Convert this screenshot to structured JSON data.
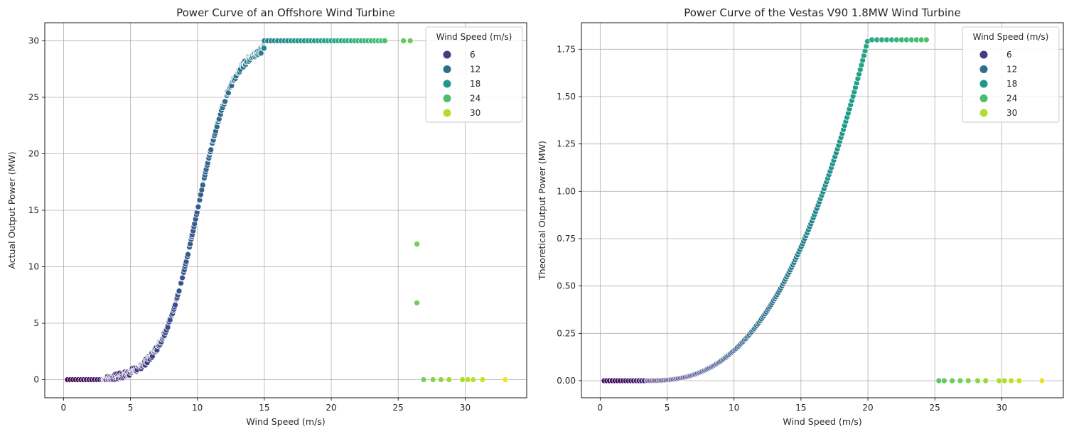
{
  "chart_data": [
    {
      "type": "scatter",
      "title": "Power Curve of an Offshore Wind Turbine",
      "xlabel": "Wind Speed (m/s)",
      "ylabel": "Actual Output Power (MW)",
      "xlim": [
        -1.4,
        34.6
      ],
      "ylim": [
        -1.6,
        31.6
      ],
      "xticks": [
        0,
        5,
        10,
        15,
        20,
        25,
        30
      ],
      "xtick_labels": [
        "0",
        "5",
        "10",
        "15",
        "20",
        "25",
        "30"
      ],
      "yticks": [
        0,
        5,
        10,
        15,
        20,
        25,
        30
      ],
      "ytick_labels": [
        "0",
        "5",
        "10",
        "15",
        "20",
        "25",
        "30"
      ],
      "grid": true,
      "legend": {
        "title": "Wind Speed (m/s)",
        "placement": "top-right",
        "entries": [
          {
            "label": "6",
            "value": 6
          },
          {
            "label": "12",
            "value": 12
          },
          {
            "label": "18",
            "value": 18
          },
          {
            "label": "24",
            "value": 24
          },
          {
            "label": "30",
            "value": 30
          }
        ]
      },
      "hue": "Wind Speed (m/s)",
      "curve": {
        "type": "logistic",
        "cut_in": 3.0,
        "rated_power": 30,
        "midpoint": 10.0,
        "steepness": 0.75,
        "x_range": [
          3.0,
          24.2
        ],
        "spread": 0.6
      },
      "low_points_x": [
        0.3,
        0.5,
        0.7,
        0.9,
        1.1,
        1.3,
        1.5,
        1.7,
        1.9,
        2.1,
        2.3,
        2.5,
        2.7,
        2.9
      ],
      "points": [
        {
          "x": 25.4,
          "y": 30.0
        },
        {
          "x": 25.9,
          "y": 30.0
        },
        {
          "x": 26.4,
          "y": 12.0
        },
        {
          "x": 26.4,
          "y": 6.8
        },
        {
          "x": 26.9,
          "y": 0
        },
        {
          "x": 27.6,
          "y": 0
        },
        {
          "x": 28.2,
          "y": 0
        },
        {
          "x": 28.8,
          "y": 0
        },
        {
          "x": 29.8,
          "y": 0
        },
        {
          "x": 30.2,
          "y": 0
        },
        {
          "x": 30.6,
          "y": 0
        },
        {
          "x": 31.3,
          "y": 0
        },
        {
          "x": 33.0,
          "y": 0
        }
      ]
    },
    {
      "type": "scatter",
      "title": "Power Curve of the Vestas V90 1.8MW Wind Turbine",
      "xlabel": "Wind Speed (m/s)",
      "ylabel": "Theoretical Output Power (MW)",
      "xlim": [
        -1.4,
        34.6
      ],
      "ylim": [
        -0.09,
        1.89
      ],
      "xticks": [
        0,
        5,
        10,
        15,
        20,
        25,
        30
      ],
      "xtick_labels": [
        "0",
        "5",
        "10",
        "15",
        "20",
        "25",
        "30"
      ],
      "yticks": [
        0,
        0.25,
        0.5,
        0.75,
        1.0,
        1.25,
        1.5,
        1.75
      ],
      "ytick_labels": [
        "0.00",
        "0.25",
        "0.50",
        "0.75",
        "1.00",
        "1.25",
        "1.50",
        "1.75"
      ],
      "grid": true,
      "legend": {
        "title": "Wind Speed (m/s)",
        "placement": "top-right",
        "entries": [
          {
            "label": "6",
            "value": 6
          },
          {
            "label": "12",
            "value": 12
          },
          {
            "label": "18",
            "value": 18
          },
          {
            "label": "24",
            "value": 24
          },
          {
            "label": "30",
            "value": 30
          }
        ]
      },
      "hue": "Wind Speed (m/s)",
      "curve": {
        "type": "cubic",
        "cut_in": 3.5,
        "rated_speed": 20,
        "rated_power": 1.8,
        "x_range": [
          3.5,
          24.4
        ]
      },
      "low_points_x": [
        0.3,
        0.5,
        0.7,
        0.9,
        1.1,
        1.3,
        1.5,
        1.7,
        1.9,
        2.1,
        2.3,
        2.5,
        2.7,
        2.9,
        3.1,
        3.3
      ],
      "points": [
        {
          "x": 25.3,
          "y": 0
        },
        {
          "x": 25.7,
          "y": 0
        },
        {
          "x": 26.3,
          "y": 0
        },
        {
          "x": 26.9,
          "y": 0
        },
        {
          "x": 27.5,
          "y": 0
        },
        {
          "x": 28.2,
          "y": 0
        },
        {
          "x": 28.8,
          "y": 0
        },
        {
          "x": 29.8,
          "y": 0
        },
        {
          "x": 30.2,
          "y": 0
        },
        {
          "x": 30.7,
          "y": 0
        },
        {
          "x": 31.3,
          "y": 0
        },
        {
          "x": 33.0,
          "y": 0
        }
      ]
    }
  ]
}
